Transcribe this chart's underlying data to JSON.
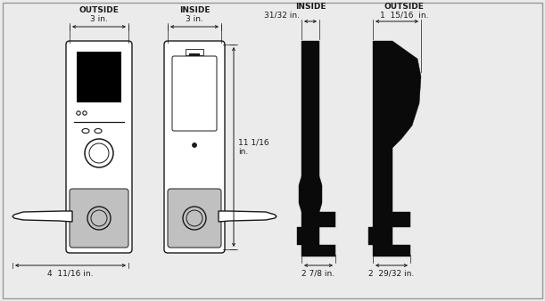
{
  "bg_color": "#ebebeb",
  "line_color": "#1a1a1a",
  "gray_fill": "#c0c0c0",
  "black_fill": "#0a0a0a",
  "white_fill": "#ffffff",
  "labels": {
    "outside_left": "OUTSIDE",
    "inside_left": "INSIDE",
    "inside_right": "INSIDE",
    "outside_right": "OUTSIDE",
    "dim_3in_outside": "3 in.",
    "dim_3in_inside": "3 in.",
    "dim_11_1_16": "11 1/16\nin.",
    "dim_4_11_16": "4  11/16 in.",
    "dim_31_32": "31/32 in.",
    "dim_1_15_16": "1  15/16  in.",
    "dim_2_7_8": "2 7/8 in.",
    "dim_2_29_32": "2  29/32 in."
  }
}
